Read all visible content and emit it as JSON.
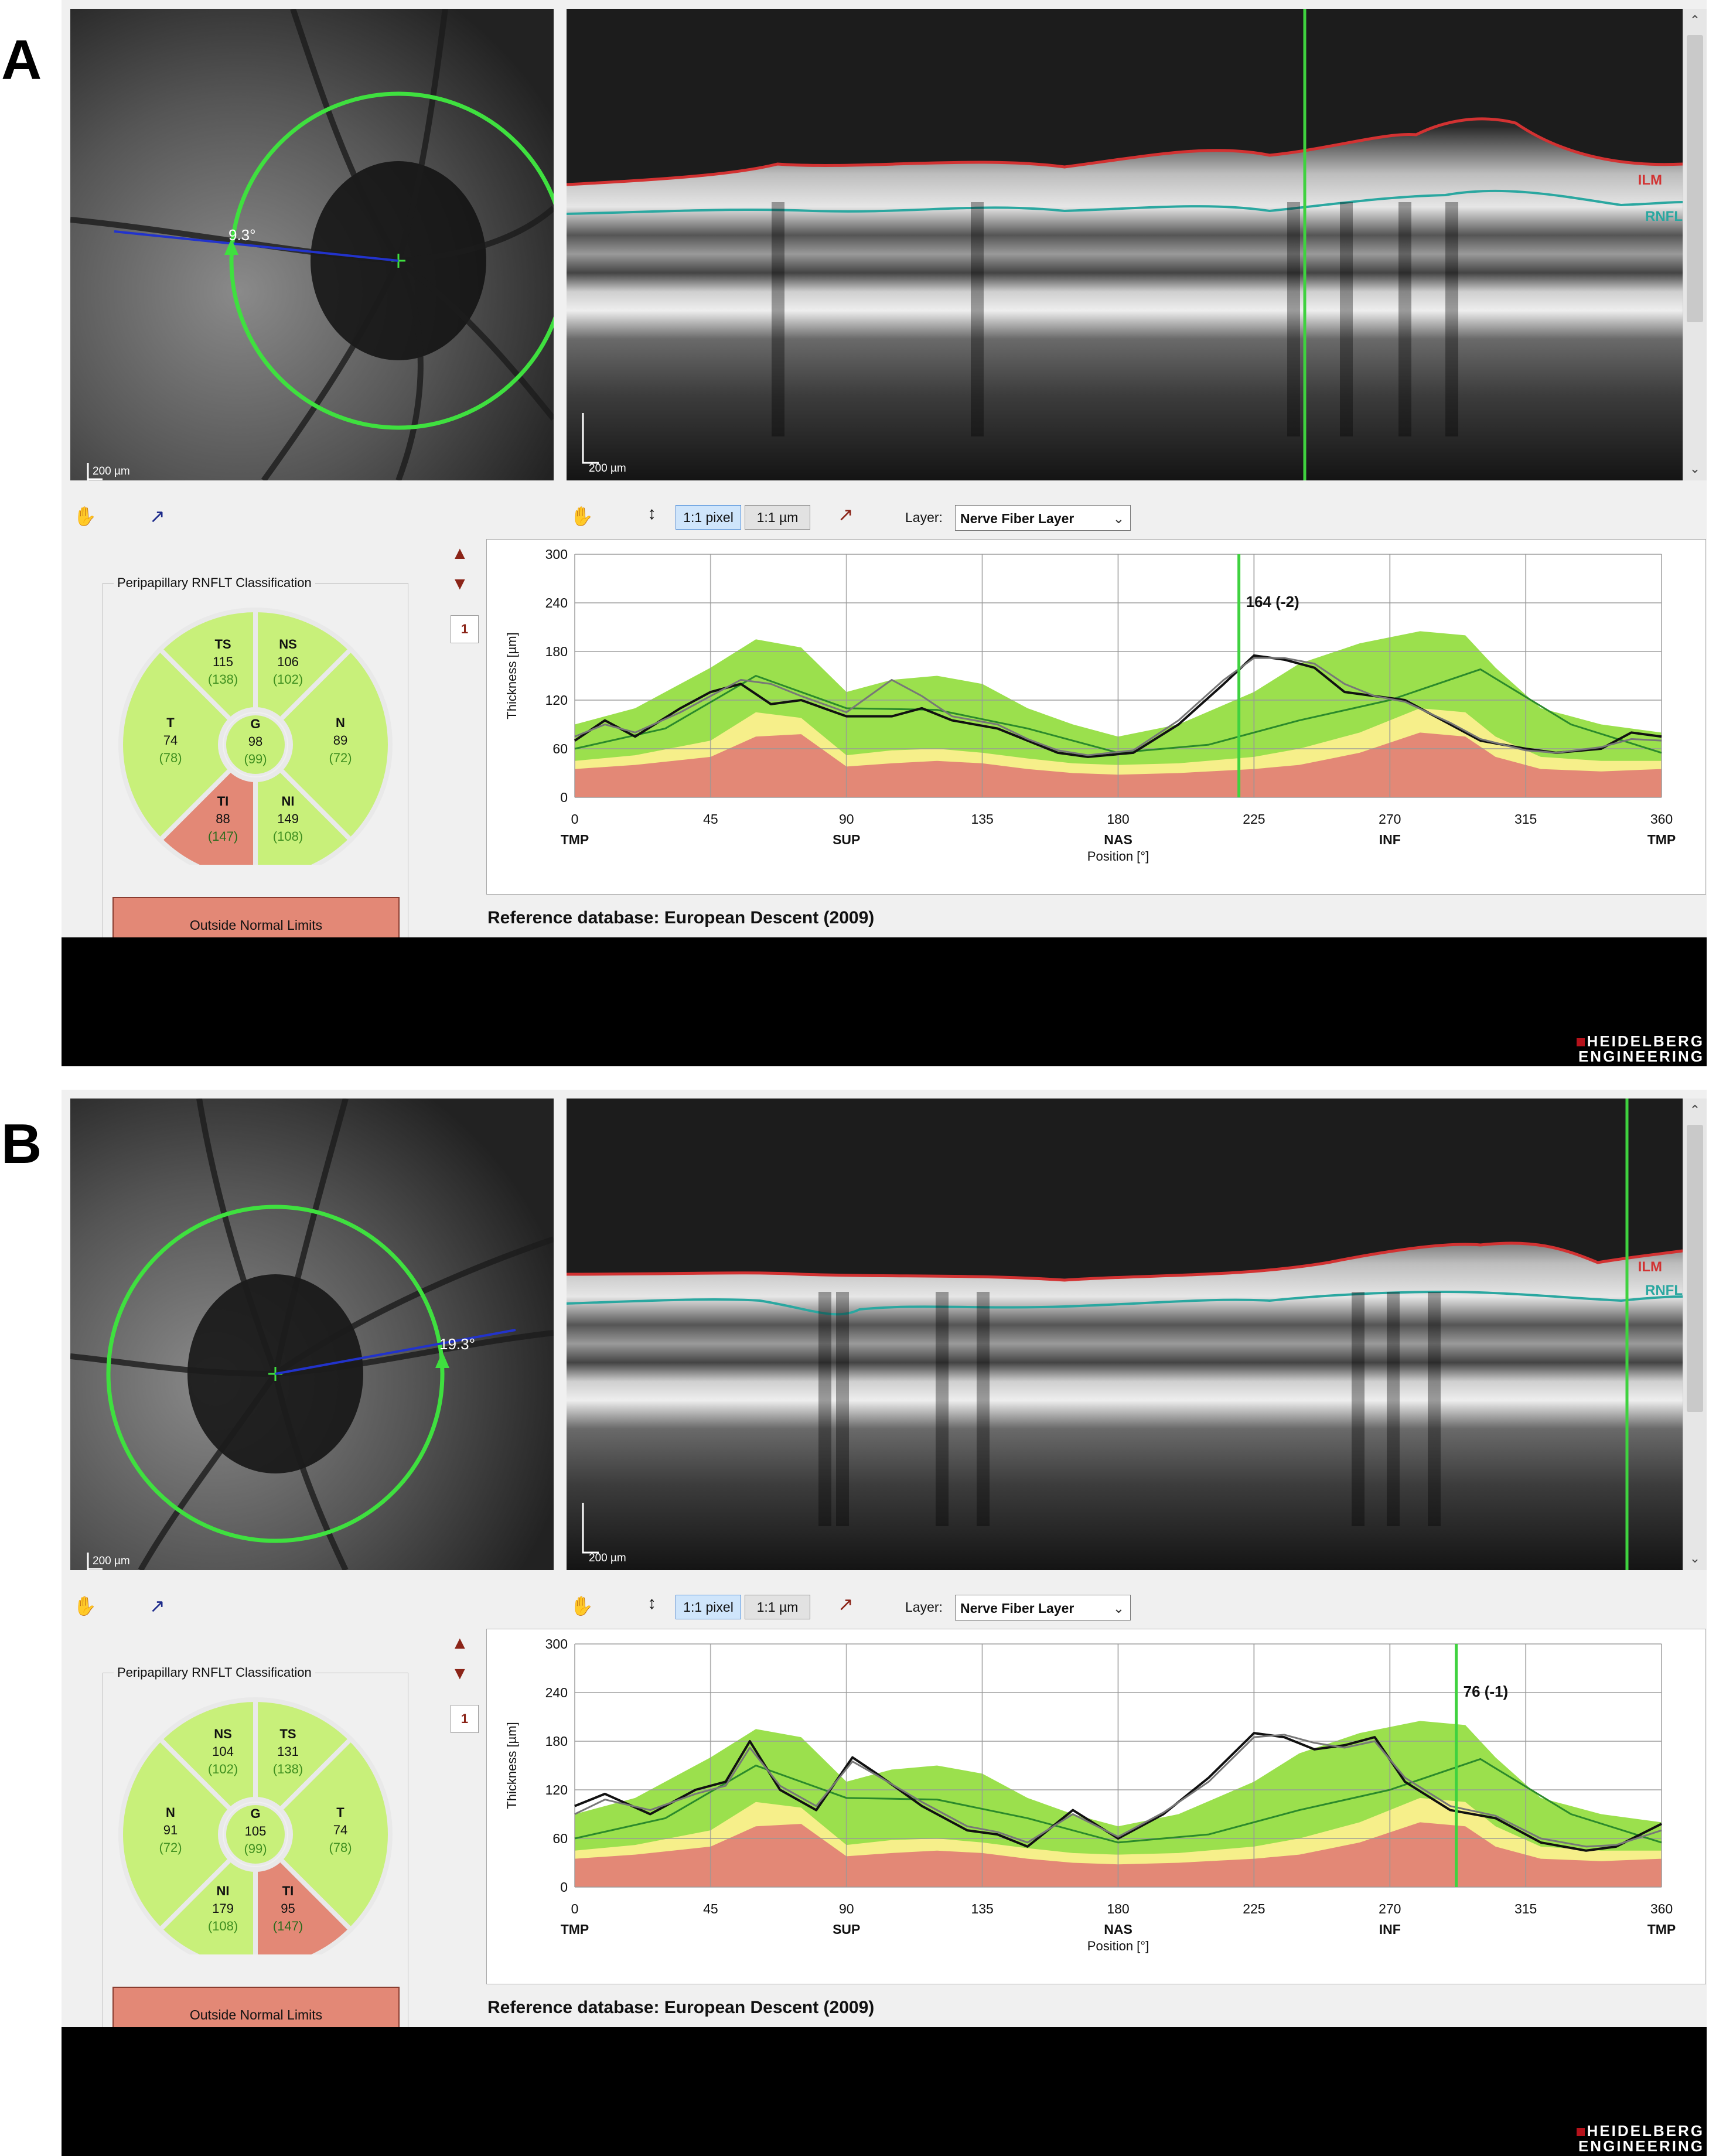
{
  "brand": {
    "line1": "HEIDELBERG",
    "line2": "ENGINEERING"
  },
  "colors": {
    "normal": "#c8f07a",
    "borderline": "#f6ef8a",
    "outside": "#e38876",
    "within_band": "#9be04d",
    "marker": "#3fd23f",
    "ilm": "#d23232",
    "rnfl": "#2aa7a0"
  },
  "panels": [
    {
      "letter": "A",
      "fundus": {
        "scale_label": "200 µm",
        "angle_label": "9.3°"
      },
      "bscan": {
        "scale_label": "200 µm",
        "ilm_label": "ILM",
        "rnfl_label": "RNFL"
      },
      "toolbar": {
        "hand_icon": "hand-icon",
        "pointer_icon": "pointer-icon",
        "btn_pixel": "1:1 pixel",
        "btn_um": "1:1 µm",
        "layer_caption": "Layer:",
        "layer_value": "Nerve Fiber Layer"
      },
      "classification": {
        "title": "Peripapillary RNFLT Classification",
        "sectors": {
          "TS": {
            "label": "TS",
            "value": "115",
            "ref": "(138)",
            "status": "normal"
          },
          "NS": {
            "label": "NS",
            "value": "106",
            "ref": "(102)",
            "status": "normal"
          },
          "T": {
            "label": "T",
            "value": "74",
            "ref": "(78)",
            "status": "normal"
          },
          "G": {
            "label": "G",
            "value": "98",
            "ref": "(99)",
            "status": "normal"
          },
          "N": {
            "label": "N",
            "value": "89",
            "ref": "(72)",
            "status": "normal"
          },
          "TI": {
            "label": "TI",
            "value": "88",
            "ref": "(147)",
            "status": "outside"
          },
          "NI": {
            "label": "NI",
            "value": "149",
            "ref": "(108)",
            "status": "normal"
          }
        },
        "result": "Outside Normal Limits"
      },
      "page_number": "1",
      "chart_data": {
        "type": "line",
        "ylabel": "Thickness [µm]",
        "xlabel": "Position [°]",
        "ylim": [
          0,
          300
        ],
        "xlim": [
          0,
          360
        ],
        "yticks": [
          "0",
          "60",
          "120",
          "180",
          "240",
          "300"
        ],
        "xticks": [
          "0",
          "45",
          "90",
          "135",
          "180",
          "225",
          "270",
          "315",
          "360"
        ],
        "sectors": [
          "TMP",
          "SUP",
          "NAS",
          "INF",
          "TMP"
        ],
        "cursor": {
          "x": 220,
          "label": "164 (-2)"
        },
        "bands": {
          "x": [
            0,
            20,
            45,
            60,
            75,
            90,
            105,
            120,
            135,
            150,
            165,
            180,
            200,
            225,
            240,
            260,
            280,
            295,
            305,
            320,
            340,
            360
          ],
          "outside_upper": [
            35,
            40,
            50,
            75,
            78,
            38,
            42,
            45,
            42,
            35,
            30,
            28,
            30,
            35,
            40,
            55,
            80,
            75,
            50,
            35,
            32,
            35
          ],
          "borderline_upper": [
            45,
            52,
            70,
            105,
            98,
            52,
            58,
            60,
            55,
            48,
            42,
            40,
            42,
            50,
            60,
            80,
            110,
            105,
            75,
            50,
            45,
            45
          ],
          "normal_upper": [
            90,
            110,
            160,
            195,
            185,
            130,
            145,
            150,
            140,
            110,
            90,
            75,
            90,
            130,
            165,
            190,
            205,
            200,
            160,
            110,
            90,
            80
          ]
        },
        "series": [
          {
            "name": "",
            "color": "#2b8a2b",
            "x": [
              0,
              30,
              60,
              90,
              120,
              150,
              180,
              210,
              240,
              270,
              300,
              330,
              360
            ],
            "values": [
              60,
              85,
              150,
              110,
              108,
              85,
              55,
              65,
              95,
              120,
              158,
              90,
              55
            ]
          },
          {
            "name": "",
            "color": "#111111",
            "x": [
              0,
              10,
              20,
              35,
              45,
              55,
              65,
              75,
              90,
              105,
              115,
              125,
              140,
              150,
              160,
              170,
              185,
              200,
              215,
              225,
              235,
              245,
              255,
              265,
              275,
              290,
              300,
              315,
              325,
              340,
              350,
              360
            ],
            "values": [
              70,
              95,
              75,
              110,
              130,
              140,
              115,
              120,
              100,
              100,
              110,
              95,
              85,
              70,
              55,
              50,
              55,
              90,
              140,
              175,
              170,
              160,
              130,
              125,
              120,
              90,
              70,
              60,
              55,
              60,
              80,
              75
            ]
          },
          {
            "name": "",
            "color": "#777777",
            "x": [
              0,
              10,
              20,
              35,
              45,
              55,
              65,
              75,
              90,
              105,
              115,
              125,
              140,
              150,
              160,
              170,
              185,
              200,
              215,
              225,
              235,
              245,
              255,
              265,
              275,
              290,
              300,
              315,
              325,
              340,
              350,
              360
            ],
            "values": [
              75,
              90,
              80,
              105,
              125,
              145,
              140,
              125,
              105,
              145,
              125,
              100,
              90,
              72,
              58,
              52,
              58,
              95,
              145,
              172,
              172,
              165,
              140,
              125,
              118,
              92,
              72,
              58,
              55,
              62,
              72,
              70
            ]
          }
        ]
      },
      "reference": "Reference database: European Descent (2009)"
    },
    {
      "letter": "B",
      "fundus": {
        "scale_label": "200 µm",
        "angle_label": "19.3°"
      },
      "bscan": {
        "scale_label": "200 µm",
        "ilm_label": "ILM",
        "rnfl_label": "RNFL"
      },
      "toolbar": {
        "hand_icon": "hand-icon",
        "pointer_icon": "pointer-icon",
        "btn_pixel": "1:1 pixel",
        "btn_um": "1:1 µm",
        "layer_caption": "Layer:",
        "layer_value": "Nerve Fiber Layer"
      },
      "classification": {
        "title": "Peripapillary RNFLT Classification",
        "sectors": {
          "TS": {
            "label": "NS",
            "value": "104",
            "ref": "(102)",
            "status": "normal"
          },
          "NS": {
            "label": "TS",
            "value": "131",
            "ref": "(138)",
            "status": "normal"
          },
          "T": {
            "label": "N",
            "value": "91",
            "ref": "(72)",
            "status": "normal"
          },
          "G": {
            "label": "G",
            "value": "105",
            "ref": "(99)",
            "status": "normal"
          },
          "N": {
            "label": "T",
            "value": "74",
            "ref": "(78)",
            "status": "normal"
          },
          "TI": {
            "label": "NI",
            "value": "179",
            "ref": "(108)",
            "status": "normal"
          },
          "NI": {
            "label": "TI",
            "value": "95",
            "ref": "(147)",
            "status": "outside"
          }
        },
        "result": "Outside Normal Limits"
      },
      "page_number": "1",
      "chart_data": {
        "type": "line",
        "ylabel": "Thickness [µm]",
        "xlabel": "Position [°]",
        "ylim": [
          0,
          300
        ],
        "xlim": [
          0,
          360
        ],
        "yticks": [
          "0",
          "60",
          "120",
          "180",
          "240",
          "300"
        ],
        "xticks": [
          "0",
          "45",
          "90",
          "135",
          "180",
          "225",
          "270",
          "315",
          "360"
        ],
        "sectors": [
          "TMP",
          "SUP",
          "NAS",
          "INF",
          "TMP"
        ],
        "cursor": {
          "x": 292,
          "label": "76 (-1)"
        },
        "bands": {
          "x": [
            0,
            20,
            45,
            60,
            75,
            90,
            105,
            120,
            135,
            150,
            165,
            180,
            200,
            225,
            240,
            260,
            280,
            295,
            305,
            320,
            340,
            360
          ],
          "outside_upper": [
            35,
            40,
            50,
            75,
            78,
            38,
            42,
            45,
            42,
            35,
            30,
            28,
            30,
            35,
            40,
            55,
            80,
            75,
            50,
            35,
            32,
            35
          ],
          "borderline_upper": [
            45,
            52,
            70,
            105,
            98,
            52,
            58,
            60,
            55,
            48,
            42,
            40,
            42,
            50,
            60,
            80,
            110,
            105,
            75,
            50,
            45,
            45
          ],
          "normal_upper": [
            90,
            110,
            160,
            195,
            185,
            130,
            145,
            150,
            140,
            110,
            90,
            75,
            90,
            130,
            165,
            190,
            205,
            200,
            160,
            110,
            90,
            80
          ]
        },
        "series": [
          {
            "name": "",
            "color": "#2b8a2b",
            "x": [
              0,
              30,
              60,
              90,
              120,
              150,
              180,
              210,
              240,
              270,
              300,
              330,
              360
            ],
            "values": [
              60,
              85,
              150,
              110,
              108,
              85,
              55,
              65,
              95,
              120,
              158,
              90,
              55
            ]
          },
          {
            "name": "",
            "color": "#111111",
            "x": [
              0,
              10,
              25,
              40,
              50,
              58,
              68,
              80,
              92,
              100,
              115,
              130,
              140,
              150,
              165,
              180,
              195,
              210,
              225,
              235,
              245,
              255,
              265,
              275,
              290,
              305,
              320,
              335,
              345,
              360
            ],
            "values": [
              100,
              115,
              90,
              120,
              130,
              180,
              120,
              95,
              160,
              140,
              100,
              70,
              65,
              50,
              95,
              60,
              90,
              135,
              190,
              185,
              170,
              175,
              185,
              130,
              95,
              85,
              55,
              45,
              50,
              78
            ]
          },
          {
            "name": "",
            "color": "#777777",
            "x": [
              0,
              10,
              25,
              40,
              50,
              58,
              68,
              80,
              92,
              100,
              115,
              130,
              140,
              150,
              165,
              180,
              195,
              210,
              225,
              235,
              245,
              255,
              265,
              275,
              290,
              305,
              320,
              335,
              345,
              360
            ],
            "values": [
              90,
              108,
              95,
              115,
              125,
              172,
              125,
              100,
              155,
              138,
              105,
              75,
              68,
              55,
              90,
              62,
              92,
              130,
              185,
              188,
              178,
              172,
              180,
              135,
              100,
              88,
              60,
              50,
              52,
              70
            ]
          }
        ]
      },
      "reference": "Reference database: European Descent (2009)"
    }
  ]
}
